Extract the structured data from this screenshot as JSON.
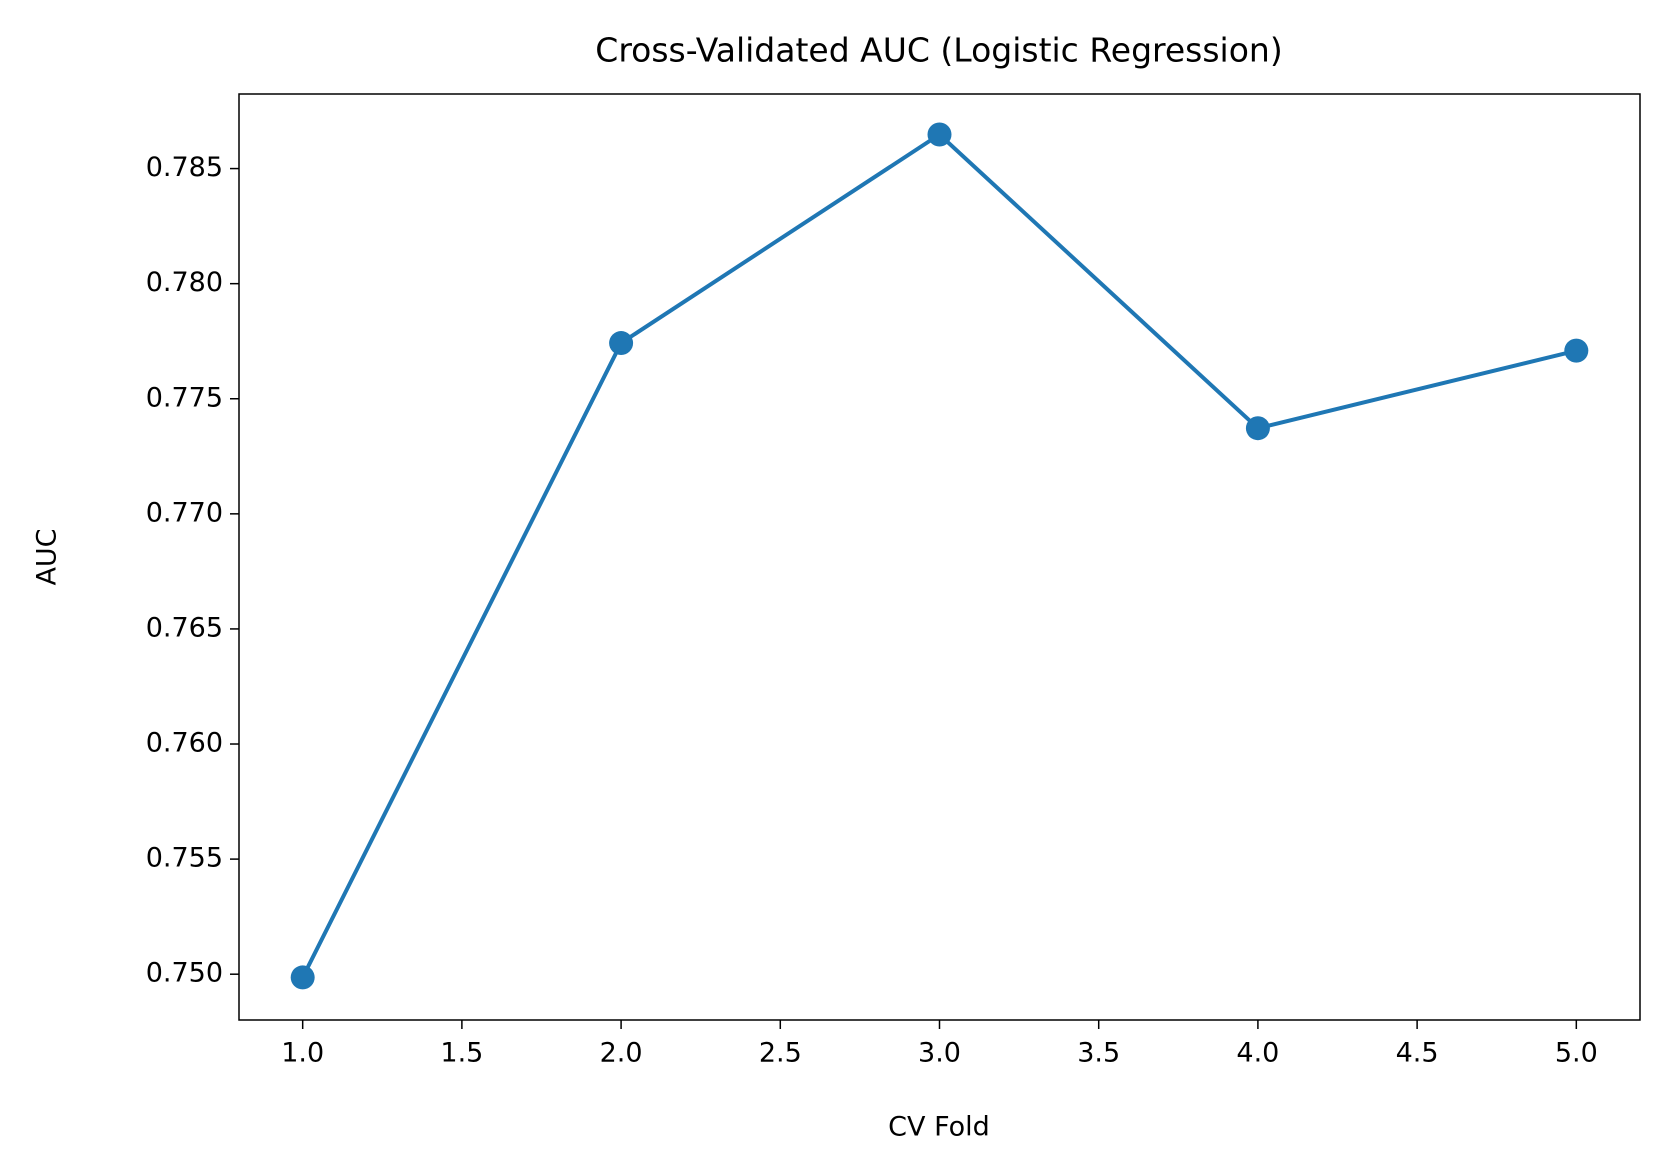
{
  "chart_data": {
    "type": "line",
    "title": "Cross-Validated AUC (Logistic Regression)",
    "x_label": "CV Fold",
    "y_label": "AUC",
    "x": [
      1,
      2,
      3,
      4,
      5
    ],
    "series": [
      {
        "name": "AUC",
        "color": "#1f77b4",
        "values": [
          0.74986,
          0.77742,
          0.78648,
          0.77372,
          0.77709
        ]
      }
    ],
    "xlim": [
      0.8,
      5.2
    ],
    "xticks": [
      {
        "value": 1,
        "label": "1.0"
      },
      1.5,
      {
        "value": 2,
        "label": "2.0"
      },
      2.5,
      {
        "value": 3,
        "label": "3.0"
      },
      3.5,
      {
        "value": 4,
        "label": "4.0"
      },
      4.5,
      {
        "value": 5,
        "label": "5.0"
      }
    ],
    "ylim": [
      0.74801,
      0.78824
    ],
    "yticks": [
      {
        "value": 0.75,
        "label": "0.750"
      },
      0.755,
      {
        "value": 0.76,
        "label": "0.760"
      },
      0.765,
      {
        "value": 0.77,
        "label": "0.770"
      },
      0.775,
      {
        "value": 0.78,
        "label": "0.780"
      },
      0.785
    ],
    "grid": false
  }
}
